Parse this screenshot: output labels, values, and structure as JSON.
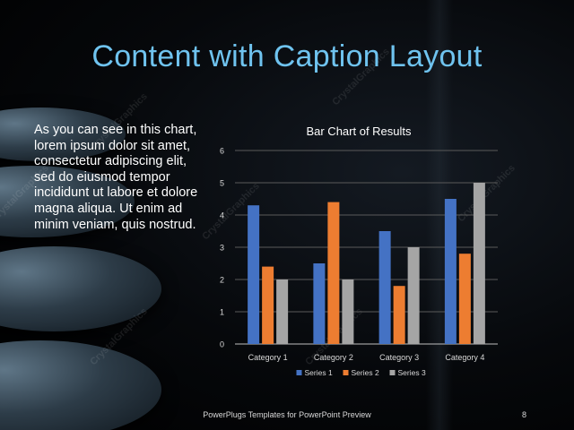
{
  "slide": {
    "title": "Content with Caption Layout",
    "caption": "As you can see in this chart, lorem ipsum dolor sit amet, consectetur adipiscing elit, sed do eiusmod tempor incididunt ut labore et dolore magna aliqua. Ut enim ad minim veniam, quis nostrud.",
    "footer": "PowerPlugs Templates for PowerPoint Preview",
    "page_number": "8",
    "watermark": "CrystalGraphics"
  },
  "colors": {
    "title": "#6fc3ef",
    "series1": "#4472c4",
    "series2": "#ed7d31",
    "series3": "#a5a5a5"
  },
  "chart_data": {
    "type": "bar",
    "title": "Bar Chart of Results",
    "categories": [
      "Category 1",
      "Category 2",
      "Category 3",
      "Category 4"
    ],
    "series": [
      {
        "name": "Series 1",
        "values": [
          4.3,
          2.5,
          3.5,
          4.5
        ]
      },
      {
        "name": "Series 2",
        "values": [
          2.4,
          4.4,
          1.8,
          2.8
        ]
      },
      {
        "name": "Series 3",
        "values": [
          2,
          2,
          3,
          5
        ]
      }
    ],
    "ylim": [
      0,
      6
    ],
    "yticks": [
      0,
      1,
      2,
      3,
      4,
      5,
      6
    ],
    "grid": true,
    "legend": "bottom"
  }
}
